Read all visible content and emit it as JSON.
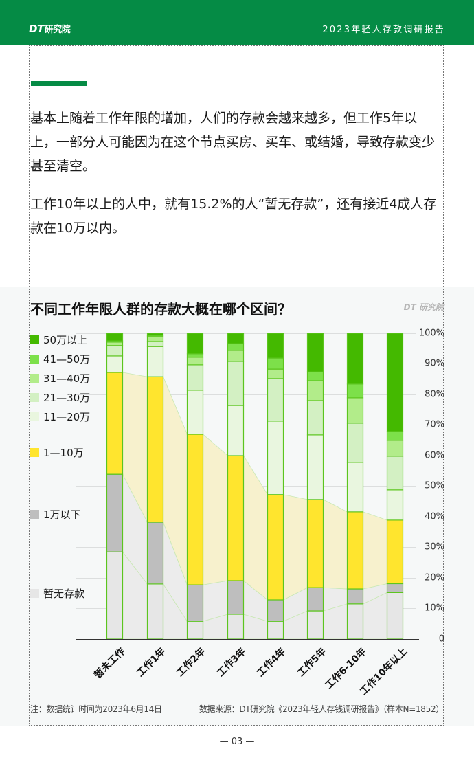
{
  "header": {
    "logo_dt": "DT",
    "logo_text": "研究院",
    "report_title": "2023年轻人存款调研报告"
  },
  "body": {
    "paragraph_1": "基本上随着工作年限的增加，人们的存款会越来越多，但工作5年以上，一部分人可能因为在这个节点买房、买车、或结婚，导致存款变少甚至清空。",
    "paragraph_2": "工作10年以上的人中，就有15.2%的人“暂无存款”，还有接近4成人存款在10万以内。"
  },
  "chart": {
    "title": "不同工作年限人群的存款大概在哪个区间？",
    "watermark": "DT 研究院",
    "legend": [
      {
        "label": "50万以上",
        "color": "#44b900"
      },
      {
        "label": "41—50万",
        "color": "#7de04a"
      },
      {
        "label": "31—40万",
        "color": "#b2ec8a"
      },
      {
        "label": "21—30万",
        "color": "#d3f0c3"
      },
      {
        "label": "11—20万",
        "color": "#e9f6df"
      },
      {
        "label": "1—10万",
        "color": "#ffe52e"
      },
      {
        "label": "1万以下",
        "color": "#bebebe"
      },
      {
        "label": "暂无存款",
        "color": "#e6e6e6"
      }
    ],
    "y_ticks": [
      "100%",
      "90%",
      "80%",
      "70%",
      "60%",
      "50%",
      "40%",
      "30%",
      "20%",
      "10%",
      "0"
    ],
    "x_labels": [
      "暂未工作",
      "工作1年",
      "工作2年",
      "工作3年",
      "工作4年",
      "工作5年",
      "工作6-10年",
      "工作10年以上"
    ]
  },
  "chart_data": {
    "type": "bar",
    "stacked": true,
    "orientation": "vertical",
    "title": "不同工作年限人群的存款大概在哪个区间？",
    "xlabel": "",
    "ylabel": "",
    "ylim": [
      0,
      100
    ],
    "y_unit": "%",
    "legend_position": "left",
    "grid": true,
    "categories": [
      "暂未工作",
      "工作1年",
      "工作2年",
      "工作3年",
      "工作4年",
      "工作5年",
      "工作6-10年",
      "工作10年以上"
    ],
    "series": [
      {
        "name": "暂无存款",
        "color": "#e6e6e6",
        "values": [
          28.5,
          18.0,
          5.8,
          8.1,
          5.8,
          9.2,
          11.5,
          15.2
        ]
      },
      {
        "name": "1万以下",
        "color": "#bebebe",
        "values": [
          25.4,
          20.2,
          11.9,
          11.0,
          7.0,
          7.6,
          4.9,
          2.9
        ]
      },
      {
        "name": "1—10万",
        "color": "#ffe52e",
        "values": [
          33.3,
          47.6,
          49.2,
          40.9,
          34.4,
          28.8,
          25.2,
          20.8
        ]
      },
      {
        "name": "11—20万",
        "color": "#e9f6df",
        "values": [
          5.4,
          9.9,
          14.4,
          16.4,
          24.0,
          21.1,
          16.2,
          9.9
        ]
      },
      {
        "name": "21—30万",
        "color": "#d3f0c3",
        "values": [
          3.4,
          1.6,
          8.3,
          14.4,
          13.9,
          11.2,
          12.8,
          11.0
        ]
      },
      {
        "name": "31—40万",
        "color": "#b2ec8a",
        "values": [
          1.1,
          1.6,
          2.5,
          3.6,
          3.1,
          6.5,
          8.3,
          5.2
        ]
      },
      {
        "name": "41—50万",
        "color": "#7de04a",
        "values": [
          0.4,
          0.4,
          1.1,
          2.2,
          3.6,
          2.9,
          4.5,
          2.9
        ]
      },
      {
        "name": "50万以上",
        "color": "#44b900",
        "values": [
          2.5,
          0.7,
          6.7,
          3.4,
          8.1,
          12.6,
          16.6,
          32.1
        ]
      }
    ],
    "annotations": [
      "注：数据统计时间为2023年6月14日",
      "数据来源：DT研究院《2023年轻人存钱调研报告》（样本N=1852）"
    ]
  },
  "footer": {
    "note": "注：数据统计时间为2023年6月14日",
    "source": "数据来源：DT研究院《2023年轻人存钱调研报告》（样本N=1852）",
    "page_number": "— 03 —"
  }
}
